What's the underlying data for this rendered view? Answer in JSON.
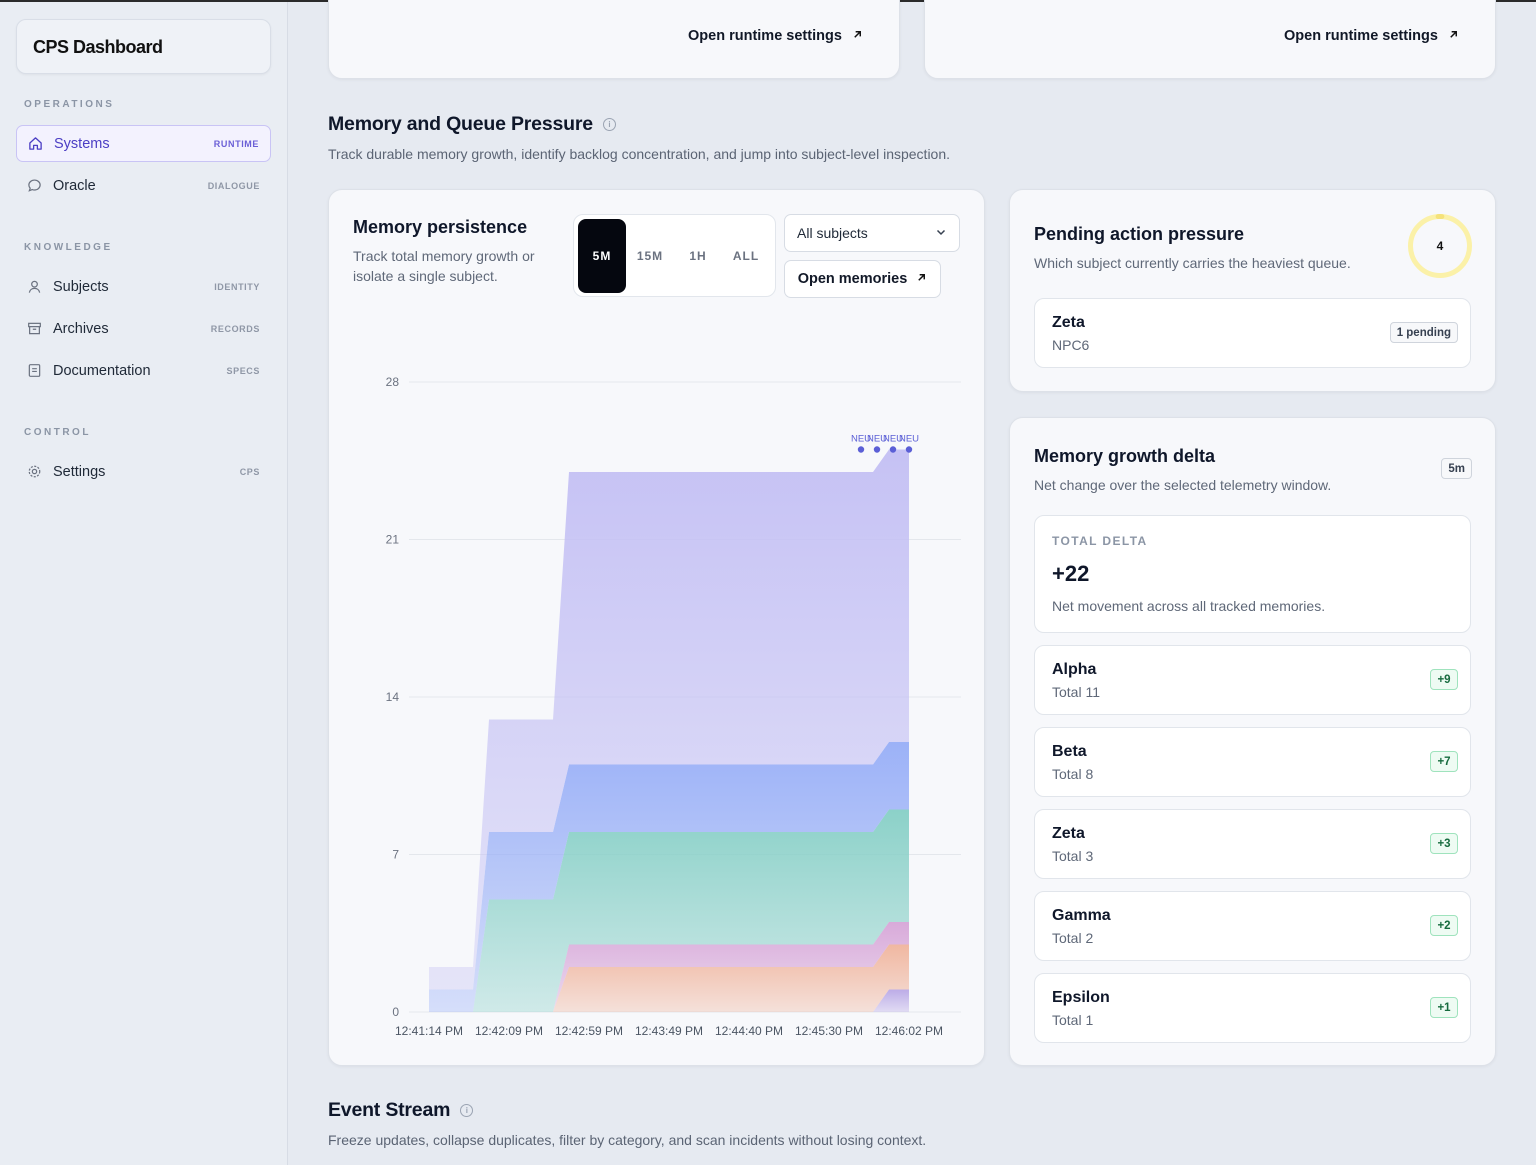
{
  "sidebar": {
    "brand": "CPS Dashboard",
    "sections": {
      "operations": "OPERATIONS",
      "knowledge": "KNOWLEDGE",
      "control": "CONTROL"
    },
    "items": [
      {
        "label": "Systems",
        "tag": "RUNTIME",
        "icon": "home-icon",
        "active": true
      },
      {
        "label": "Oracle",
        "tag": "DIALOGUE",
        "icon": "chat-bubble-icon"
      },
      {
        "label": "Subjects",
        "tag": "IDENTITY",
        "icon": "user-icon"
      },
      {
        "label": "Archives",
        "tag": "RECORDS",
        "icon": "archive-icon"
      },
      {
        "label": "Documentation",
        "tag": "SPECS",
        "icon": "document-icon"
      },
      {
        "label": "Settings",
        "tag": "CPS",
        "icon": "gear-icon"
      }
    ]
  },
  "top_cards": {
    "left_link": "Open runtime settings",
    "right_link": "Open runtime settings"
  },
  "memory_section": {
    "title": "Memory and Queue Pressure",
    "subtitle": "Track durable memory growth, identify backlog concentration, and jump into subject-level inspection."
  },
  "persistence": {
    "title": "Memory persistence",
    "subtitle": "Track total memory growth or isolate a single subject.",
    "ranges": [
      "5M",
      "15M",
      "1H",
      "ALL"
    ],
    "active_range": "5M",
    "select_value": "All subjects",
    "open_memories": "Open memories"
  },
  "chart_data": {
    "type": "area",
    "stacked": true,
    "x": [
      "12:41:14 PM",
      "12:42:09 PM",
      "12:42:59 PM",
      "12:43:49 PM",
      "12:44:40 PM",
      "12:45:30 PM",
      "12:46:02 PM"
    ],
    "ylim": [
      0,
      28
    ],
    "yticks": [
      0,
      7,
      14,
      21,
      28
    ],
    "grid": true,
    "point_labels": [
      "NEU",
      "NEU",
      "NEU",
      "NEU"
    ],
    "series": [
      {
        "color": "#b9a8e6",
        "values": [
          0,
          0,
          0,
          0,
          0,
          0,
          1
        ]
      },
      {
        "color": "#f0b49c",
        "values": [
          0,
          0,
          2,
          2,
          2,
          2,
          2
        ]
      },
      {
        "color": "#d7a6d8",
        "values": [
          0,
          0,
          1,
          1,
          1,
          1,
          1
        ]
      },
      {
        "color": "#86cfc6",
        "values": [
          0,
          5,
          5,
          5,
          5,
          5,
          5
        ]
      },
      {
        "color": "#97aef7",
        "values": [
          1,
          3,
          3,
          3,
          3,
          3,
          3
        ]
      },
      {
        "color": "#c3bff4",
        "values": [
          1,
          5,
          13,
          13,
          13,
          13,
          13
        ]
      }
    ]
  },
  "pending": {
    "title": "Pending action pressure",
    "subtitle": "Which subject currently carries the heaviest queue.",
    "ring_value": "4",
    "ring_fraction": 0.02,
    "ring_color": "#f5e27a",
    "subject_name": "Zeta",
    "subject_sub": "NPC6",
    "badge": "1 pending"
  },
  "delta": {
    "title": "Memory growth delta",
    "subtitle": "Net change over the selected telemetry window.",
    "window_badge": "5m",
    "total_label": "TOTAL DELTA",
    "total_value": "+22",
    "total_desc": "Net movement across all tracked memories.",
    "rows": [
      {
        "name": "Alpha",
        "total": "Total 11",
        "delta": "+9"
      },
      {
        "name": "Beta",
        "total": "Total 8",
        "delta": "+7"
      },
      {
        "name": "Zeta",
        "total": "Total 3",
        "delta": "+3"
      },
      {
        "name": "Gamma",
        "total": "Total 2",
        "delta": "+2"
      },
      {
        "name": "Epsilon",
        "total": "Total 1",
        "delta": "+1"
      }
    ]
  },
  "event_stream": {
    "title": "Event Stream",
    "subtitle": "Freeze updates, collapse duplicates, filter by category, and scan incidents without losing context."
  }
}
